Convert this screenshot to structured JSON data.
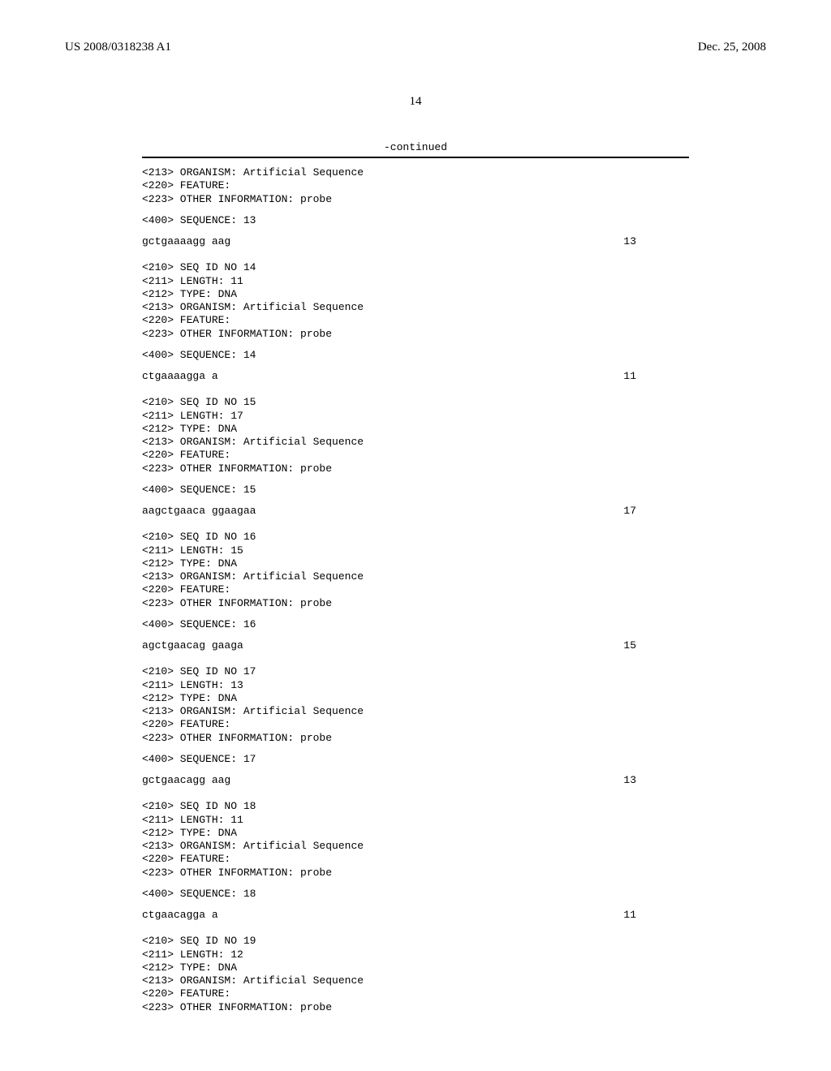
{
  "header": {
    "pub_number": "US 2008/0318238 A1",
    "pub_date": "Dec. 25, 2008"
  },
  "page_number": "14",
  "continued_label": "-continued",
  "entries": [
    {
      "meta": [
        "<213> ORGANISM: Artificial Sequence",
        "<220> FEATURE:",
        "<223> OTHER INFORMATION: probe"
      ],
      "seq_header": "<400> SEQUENCE: 13",
      "sequence": "gctgaaaagg aag",
      "length": "13"
    },
    {
      "meta": [
        "<210> SEQ ID NO 14",
        "<211> LENGTH: 11",
        "<212> TYPE: DNA",
        "<213> ORGANISM: Artificial Sequence",
        "<220> FEATURE:",
        "<223> OTHER INFORMATION: probe"
      ],
      "seq_header": "<400> SEQUENCE: 14",
      "sequence": "ctgaaaagga a",
      "length": "11"
    },
    {
      "meta": [
        "<210> SEQ ID NO 15",
        "<211> LENGTH: 17",
        "<212> TYPE: DNA",
        "<213> ORGANISM: Artificial Sequence",
        "<220> FEATURE:",
        "<223> OTHER INFORMATION: probe"
      ],
      "seq_header": "<400> SEQUENCE: 15",
      "sequence": "aagctgaaca ggaagaa",
      "length": "17"
    },
    {
      "meta": [
        "<210> SEQ ID NO 16",
        "<211> LENGTH: 15",
        "<212> TYPE: DNA",
        "<213> ORGANISM: Artificial Sequence",
        "<220> FEATURE:",
        "<223> OTHER INFORMATION: probe"
      ],
      "seq_header": "<400> SEQUENCE: 16",
      "sequence": "agctgaacag gaaga",
      "length": "15"
    },
    {
      "meta": [
        "<210> SEQ ID NO 17",
        "<211> LENGTH: 13",
        "<212> TYPE: DNA",
        "<213> ORGANISM: Artificial Sequence",
        "<220> FEATURE:",
        "<223> OTHER INFORMATION: probe"
      ],
      "seq_header": "<400> SEQUENCE: 17",
      "sequence": "gctgaacagg aag",
      "length": "13"
    },
    {
      "meta": [
        "<210> SEQ ID NO 18",
        "<211> LENGTH: 11",
        "<212> TYPE: DNA",
        "<213> ORGANISM: Artificial Sequence",
        "<220> FEATURE:",
        "<223> OTHER INFORMATION: probe"
      ],
      "seq_header": "<400> SEQUENCE: 18",
      "sequence": "ctgaacagga a",
      "length": "11"
    },
    {
      "meta": [
        "<210> SEQ ID NO 19",
        "<211> LENGTH: 12",
        "<212> TYPE: DNA",
        "<213> ORGANISM: Artificial Sequence",
        "<220> FEATURE:",
        "<223> OTHER INFORMATION: probe"
      ],
      "seq_header": "",
      "sequence": "",
      "length": ""
    }
  ]
}
